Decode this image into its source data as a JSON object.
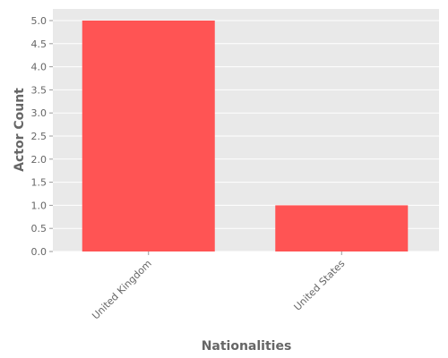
{
  "chart_data": {
    "type": "bar",
    "categories": [
      "United Kingdom",
      "United States"
    ],
    "values": [
      5,
      1
    ],
    "title": "",
    "xlabel": "Nationalities",
    "ylabel": "Actor Count",
    "ylim": [
      0,
      5.0
    ],
    "yticks": [
      "0.0",
      "0.5",
      "1.0",
      "1.5",
      "2.0",
      "2.5",
      "3.0",
      "3.5",
      "4.0",
      "4.5",
      "5.0"
    ],
    "grid": true,
    "bar_color": "#ff5454",
    "plot_background": "#e9e9e9",
    "grid_color": "#ffffff",
    "text_color": "#666666"
  }
}
